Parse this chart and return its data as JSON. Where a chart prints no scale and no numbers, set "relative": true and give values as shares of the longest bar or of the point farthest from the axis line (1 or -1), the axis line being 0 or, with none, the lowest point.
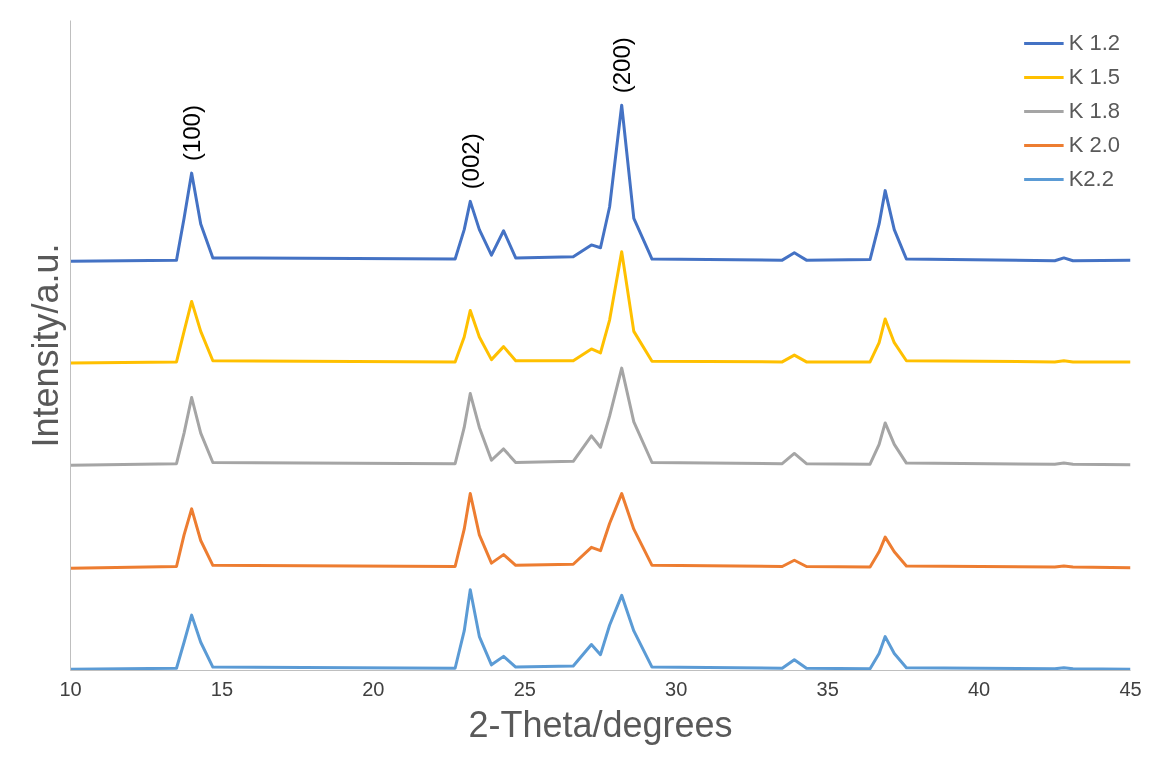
{
  "chart_data": {
    "type": "line",
    "xlabel": "2-Theta/degrees",
    "ylabel": "Intensity/a.u.",
    "relative": true,
    "xlim": [
      10,
      45
    ],
    "xticks": [
      10,
      15,
      20,
      25,
      30,
      35,
      40,
      45
    ],
    "grid": false,
    "legend": "top right",
    "tick_labels": "x",
    "marker": "none",
    "line_style": "solid",
    "x": [
      10,
      13.5,
      13.75,
      14.0,
      14.3,
      14.7,
      22.7,
      23.0,
      23.2,
      23.5,
      23.9,
      24.3,
      24.7,
      26.6,
      27.2,
      27.5,
      27.8,
      28.2,
      28.6,
      29.2,
      33.5,
      33.9,
      34.3,
      36.4,
      36.7,
      36.9,
      37.2,
      37.6,
      42.5,
      42.8,
      43.1,
      45
    ],
    "series": [
      {
        "name": "K 1.2",
        "color": "#4472c4",
        "values": [
          0.724,
          0.726,
          0.8,
          0.88,
          0.79,
          0.73,
          0.728,
          0.78,
          0.83,
          0.78,
          0.735,
          0.778,
          0.73,
          0.732,
          0.753,
          0.748,
          0.82,
          1.0,
          0.8,
          0.728,
          0.726,
          0.739,
          0.726,
          0.727,
          0.79,
          0.849,
          0.78,
          0.728,
          0.725,
          0.73,
          0.725,
          0.726
        ]
      },
      {
        "name": "K 1.5",
        "color": "#ffc000",
        "values": [
          0.544,
          0.546,
          0.6,
          0.653,
          0.6,
          0.548,
          0.546,
          0.59,
          0.637,
          0.59,
          0.55,
          0.573,
          0.548,
          0.548,
          0.569,
          0.562,
          0.62,
          0.741,
          0.6,
          0.547,
          0.546,
          0.558,
          0.546,
          0.546,
          0.58,
          0.622,
          0.58,
          0.548,
          0.546,
          0.548,
          0.546,
          0.546
        ]
      },
      {
        "name": "K 1.8",
        "color": "#a5a5a5",
        "values": [
          0.363,
          0.366,
          0.42,
          0.483,
          0.42,
          0.368,
          0.366,
          0.43,
          0.49,
          0.43,
          0.372,
          0.392,
          0.368,
          0.37,
          0.415,
          0.395,
          0.45,
          0.535,
          0.44,
          0.368,
          0.366,
          0.384,
          0.366,
          0.365,
          0.4,
          0.438,
          0.4,
          0.367,
          0.365,
          0.367,
          0.365,
          0.364
        ]
      },
      {
        "name": "K 2.0",
        "color": "#ed7d31",
        "values": [
          0.181,
          0.184,
          0.24,
          0.286,
          0.23,
          0.186,
          0.184,
          0.25,
          0.313,
          0.24,
          0.19,
          0.205,
          0.186,
          0.188,
          0.218,
          0.212,
          0.26,
          0.313,
          0.25,
          0.186,
          0.184,
          0.195,
          0.184,
          0.183,
          0.21,
          0.236,
          0.21,
          0.185,
          0.183,
          0.185,
          0.183,
          0.182
        ]
      },
      {
        "name": "K2.2",
        "color": "#5b9bd5",
        "values": [
          0.002,
          0.004,
          0.05,
          0.098,
          0.05,
          0.006,
          0.004,
          0.07,
          0.143,
          0.06,
          0.01,
          0.025,
          0.006,
          0.008,
          0.046,
          0.028,
          0.08,
          0.133,
          0.07,
          0.006,
          0.004,
          0.019,
          0.004,
          0.003,
          0.03,
          0.06,
          0.03,
          0.005,
          0.003,
          0.005,
          0.003,
          0.002
        ]
      }
    ],
    "annotations": [
      {
        "text": "(100)",
        "x": 14.0,
        "y": 0.88
      },
      {
        "text": "(002)",
        "x": 23.2,
        "y": 0.83
      },
      {
        "text": "(200)",
        "x": 28.2,
        "y": 1.0
      }
    ]
  }
}
